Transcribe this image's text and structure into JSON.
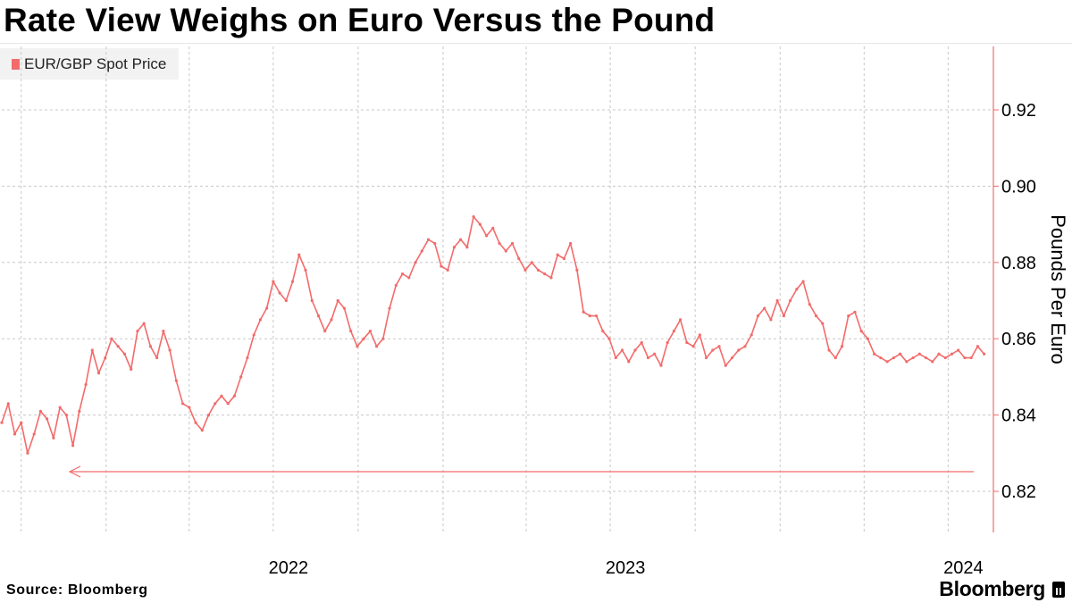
{
  "title": "Rate View Weighs on Euro Versus the Pound",
  "source": "Source:  Bloomberg",
  "brand": "Bloomberg",
  "colors": {
    "series": "#f36b6b",
    "axis": "#f36b6b",
    "grid": "#c8c8c8"
  },
  "chart_data": {
    "type": "line",
    "title": "Rate View Weighs on Euro Versus the Pound",
    "legend": [
      "EUR/GBP Spot Price"
    ],
    "xlabel": "",
    "ylabel": "Pounds Per Euro",
    "xlim": [
      "2021-09-10",
      "2024-08-19"
    ],
    "ylim": [
      0.81,
      0.935
    ],
    "yticks": [
      0.82,
      0.84,
      0.86,
      0.88,
      0.9,
      0.92
    ],
    "ytick_labels": [
      "0.82",
      "0.84",
      "0.86",
      "0.88",
      "0.90",
      "0.92"
    ],
    "xtick_labels": [
      {
        "label": "2022",
        "date": "2022-07-01"
      },
      {
        "label": "2023",
        "date": "2023-07-01"
      },
      {
        "label": "2024",
        "date": "2024-07-01"
      }
    ],
    "gridlines_dates": [
      "2021-10-01",
      "2022-01-01",
      "2022-04-01",
      "2022-07-01",
      "2022-10-01",
      "2023-01-01",
      "2023-04-01",
      "2023-07-01",
      "2023-10-01",
      "2024-01-01",
      "2024-04-01",
      "2024-07-01"
    ],
    "grid": true,
    "series": [
      {
        "name": "EUR/GBP Spot Price",
        "points": [
          [
            "2021-09-10",
            0.838
          ],
          [
            "2021-09-17",
            0.843
          ],
          [
            "2021-09-24",
            0.835
          ],
          [
            "2021-10-01",
            0.838
          ],
          [
            "2021-10-08",
            0.83
          ],
          [
            "2021-10-15",
            0.835
          ],
          [
            "2021-10-22",
            0.841
          ],
          [
            "2021-10-29",
            0.839
          ],
          [
            "2021-11-05",
            0.834
          ],
          [
            "2021-11-12",
            0.842
          ],
          [
            "2021-11-19",
            0.84
          ],
          [
            "2021-11-26",
            0.832
          ],
          [
            "2021-12-03",
            0.841
          ],
          [
            "2021-12-10",
            0.848
          ],
          [
            "2021-12-17",
            0.857
          ],
          [
            "2021-12-24",
            0.851
          ],
          [
            "2021-12-31",
            0.855
          ],
          [
            "2022-01-07",
            0.86
          ],
          [
            "2022-01-14",
            0.858
          ],
          [
            "2022-01-21",
            0.856
          ],
          [
            "2022-01-28",
            0.852
          ],
          [
            "2022-02-04",
            0.862
          ],
          [
            "2022-02-11",
            0.864
          ],
          [
            "2022-02-18",
            0.858
          ],
          [
            "2022-02-25",
            0.855
          ],
          [
            "2022-03-04",
            0.862
          ],
          [
            "2022-03-11",
            0.857
          ],
          [
            "2022-03-18",
            0.849
          ],
          [
            "2022-03-25",
            0.843
          ],
          [
            "2022-04-01",
            0.842
          ],
          [
            "2022-04-08",
            0.838
          ],
          [
            "2022-04-15",
            0.836
          ],
          [
            "2022-04-22",
            0.84
          ],
          [
            "2022-04-29",
            0.843
          ],
          [
            "2022-05-06",
            0.845
          ],
          [
            "2022-05-13",
            0.843
          ],
          [
            "2022-05-20",
            0.845
          ],
          [
            "2022-05-27",
            0.85
          ],
          [
            "2022-06-03",
            0.855
          ],
          [
            "2022-06-10",
            0.861
          ],
          [
            "2022-06-17",
            0.865
          ],
          [
            "2022-06-24",
            0.868
          ],
          [
            "2022-07-01",
            0.875
          ],
          [
            "2022-07-08",
            0.872
          ],
          [
            "2022-07-15",
            0.87
          ],
          [
            "2022-07-22",
            0.875
          ],
          [
            "2022-07-29",
            0.882
          ],
          [
            "2022-08-05",
            0.878
          ],
          [
            "2022-08-12",
            0.87
          ],
          [
            "2022-08-19",
            0.866
          ],
          [
            "2022-08-26",
            0.862
          ],
          [
            "2022-09-02",
            0.865
          ],
          [
            "2022-09-09",
            0.87
          ],
          [
            "2022-09-16",
            0.868
          ],
          [
            "2022-09-23",
            0.862
          ],
          [
            "2022-09-30",
            0.858
          ],
          [
            "2022-10-07",
            0.86
          ],
          [
            "2022-10-14",
            0.862
          ],
          [
            "2022-10-21",
            0.858
          ],
          [
            "2022-10-28",
            0.86
          ],
          [
            "2022-11-04",
            0.868
          ],
          [
            "2022-11-11",
            0.874
          ],
          [
            "2022-11-18",
            0.877
          ],
          [
            "2022-11-25",
            0.876
          ],
          [
            "2022-12-02",
            0.88
          ],
          [
            "2022-12-09",
            0.883
          ],
          [
            "2022-12-16",
            0.886
          ],
          [
            "2022-12-23",
            0.885
          ],
          [
            "2022-12-30",
            0.879
          ],
          [
            "2023-01-06",
            0.878
          ],
          [
            "2023-01-13",
            0.884
          ],
          [
            "2023-01-20",
            0.886
          ],
          [
            "2023-01-27",
            0.884
          ],
          [
            "2023-02-03",
            0.892
          ],
          [
            "2023-02-10",
            0.89
          ],
          [
            "2023-02-17",
            0.887
          ],
          [
            "2023-02-24",
            0.889
          ],
          [
            "2023-03-03",
            0.885
          ],
          [
            "2023-03-10",
            0.883
          ],
          [
            "2023-03-17",
            0.885
          ],
          [
            "2023-03-24",
            0.881
          ],
          [
            "2023-03-31",
            0.878
          ],
          [
            "2023-04-07",
            0.88
          ],
          [
            "2023-04-14",
            0.878
          ],
          [
            "2023-04-21",
            0.877
          ],
          [
            "2023-04-28",
            0.876
          ],
          [
            "2023-05-05",
            0.882
          ],
          [
            "2023-05-12",
            0.881
          ],
          [
            "2023-05-19",
            0.885
          ],
          [
            "2023-05-26",
            0.878
          ],
          [
            "2023-06-02",
            0.867
          ],
          [
            "2023-06-09",
            0.866
          ],
          [
            "2023-06-16",
            0.866
          ],
          [
            "2023-06-23",
            0.862
          ],
          [
            "2023-06-30",
            0.86
          ],
          [
            "2023-07-07",
            0.855
          ],
          [
            "2023-07-14",
            0.857
          ],
          [
            "2023-07-21",
            0.854
          ],
          [
            "2023-07-28",
            0.857
          ],
          [
            "2023-08-04",
            0.859
          ],
          [
            "2023-08-11",
            0.855
          ],
          [
            "2023-08-18",
            0.856
          ],
          [
            "2023-08-25",
            0.853
          ],
          [
            "2023-09-01",
            0.859
          ],
          [
            "2023-09-08",
            0.862
          ],
          [
            "2023-09-15",
            0.865
          ],
          [
            "2023-09-22",
            0.859
          ],
          [
            "2023-09-29",
            0.858
          ],
          [
            "2023-10-06",
            0.861
          ],
          [
            "2023-10-13",
            0.855
          ],
          [
            "2023-10-20",
            0.857
          ],
          [
            "2023-10-27",
            0.858
          ],
          [
            "2023-11-03",
            0.853
          ],
          [
            "2023-11-10",
            0.855
          ],
          [
            "2023-11-17",
            0.857
          ],
          [
            "2023-11-24",
            0.858
          ],
          [
            "2023-12-01",
            0.861
          ],
          [
            "2023-12-08",
            0.866
          ],
          [
            "2023-12-15",
            0.868
          ],
          [
            "2023-12-22",
            0.865
          ],
          [
            "2023-12-29",
            0.87
          ],
          [
            "2024-01-05",
            0.866
          ],
          [
            "2024-01-12",
            0.87
          ],
          [
            "2024-01-19",
            0.873
          ],
          [
            "2024-01-26",
            0.875
          ],
          [
            "2024-02-02",
            0.869
          ],
          [
            "2024-02-09",
            0.866
          ],
          [
            "2024-02-16",
            0.864
          ],
          [
            "2024-02-23",
            0.857
          ],
          [
            "2024-03-01",
            0.855
          ],
          [
            "2024-03-08",
            0.858
          ],
          [
            "2024-03-15",
            0.866
          ],
          [
            "2024-03-22",
            0.867
          ],
          [
            "2024-03-29",
            0.862
          ],
          [
            "2024-04-05",
            0.86
          ],
          [
            "2024-04-12",
            0.856
          ],
          [
            "2024-04-19",
            0.855
          ],
          [
            "2024-04-26",
            0.854
          ],
          [
            "2024-05-03",
            0.855
          ],
          [
            "2024-05-10",
            0.856
          ],
          [
            "2024-05-17",
            0.854
          ],
          [
            "2024-05-24",
            0.855
          ],
          [
            "2024-05-31",
            0.856
          ],
          [
            "2024-06-07",
            0.855
          ],
          [
            "2024-06-14",
            0.854
          ],
          [
            "2024-06-21",
            0.856
          ],
          [
            "2024-06-28",
            0.855
          ],
          [
            "2024-07-05",
            0.856
          ],
          [
            "2024-07-12",
            0.857
          ],
          [
            "2024-07-19",
            0.855
          ],
          [
            "2024-07-26",
            0.855
          ],
          [
            "2024-08-02",
            0.858
          ],
          [
            "2024-08-09",
            0.856
          ]
        ]
      }
    ]
  }
}
